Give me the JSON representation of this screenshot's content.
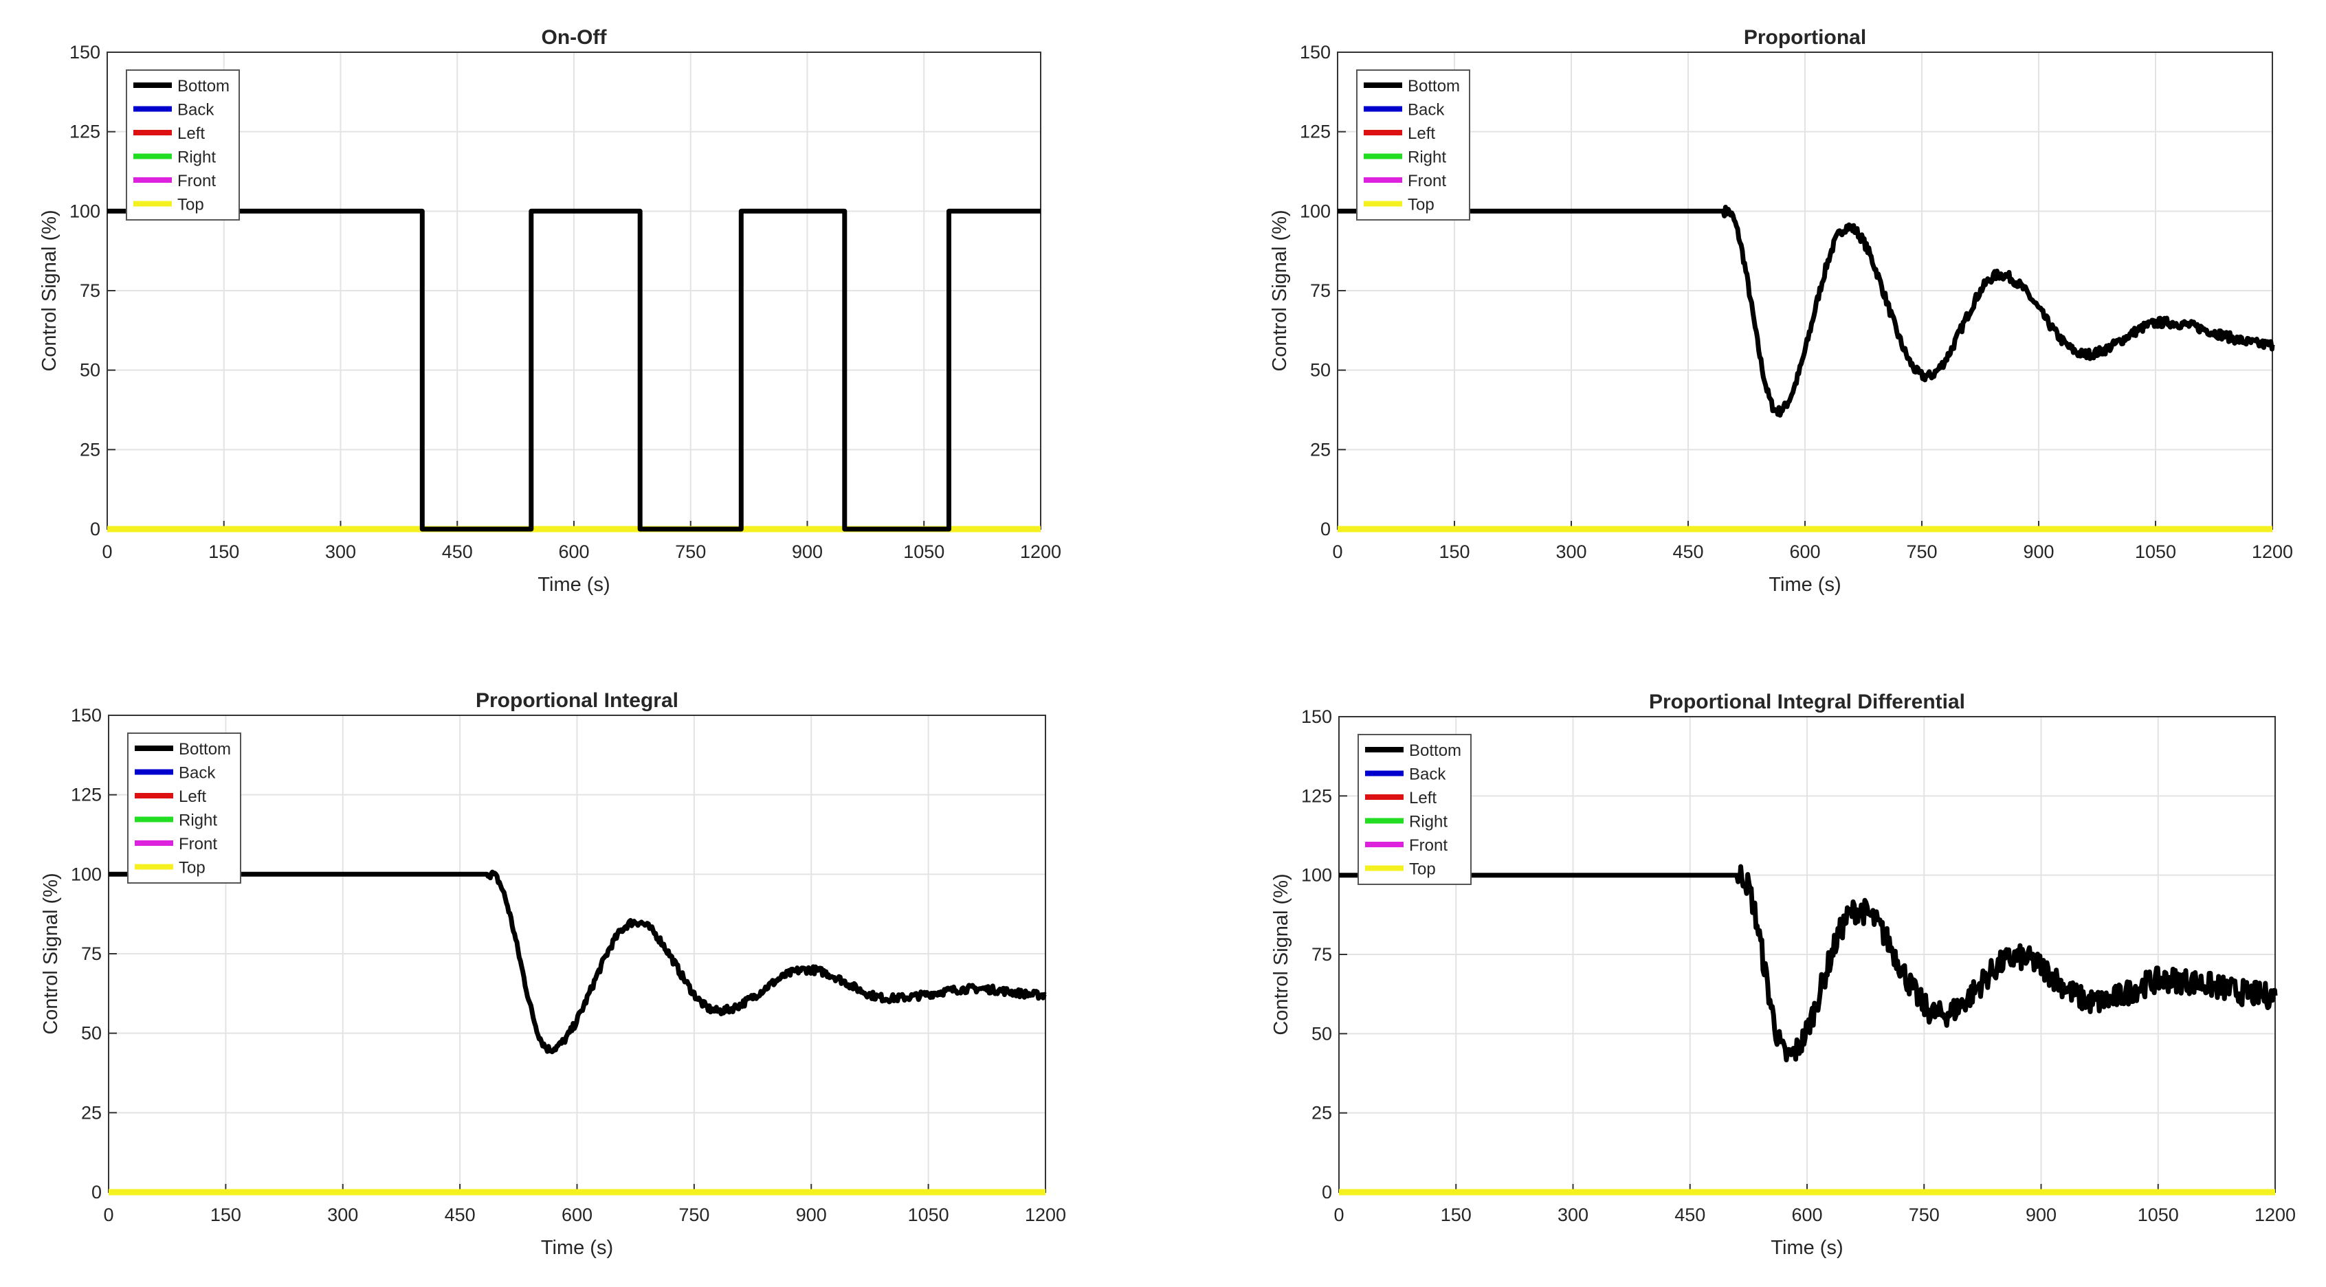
{
  "chart_data": [
    {
      "type": "line",
      "title": "On-Off",
      "xlabel": "Time (s)",
      "ylabel": "Control Signal (%)",
      "xlim": [
        0,
        1200
      ],
      "ylim": [
        0,
        150
      ],
      "xticks": [
        0,
        150,
        300,
        450,
        600,
        750,
        900,
        1050,
        1200
      ],
      "yticks": [
        0,
        25,
        50,
        75,
        100,
        125,
        150
      ],
      "grid": true,
      "legend_position": "top-left",
      "step": true,
      "noise": 0,
      "series": [
        {
          "name": "Bottom",
          "color": "#000000",
          "x": [
            0,
            405,
            405,
            545,
            545,
            685,
            685,
            815,
            815,
            948,
            948,
            1082,
            1082,
            1200
          ],
          "y": [
            100,
            100,
            0,
            0,
            100,
            100,
            0,
            0,
            100,
            100,
            0,
            0,
            100,
            100
          ]
        },
        {
          "name": "Back",
          "color": "#0000cc",
          "x": [
            0,
            1200
          ],
          "y": [
            0,
            0
          ]
        },
        {
          "name": "Left",
          "color": "#dd1111",
          "x": [
            0,
            1200
          ],
          "y": [
            0,
            0
          ]
        },
        {
          "name": "Right",
          "color": "#22dd22",
          "x": [
            0,
            1200
          ],
          "y": [
            0,
            0
          ]
        },
        {
          "name": "Front",
          "color": "#dd22dd",
          "x": [
            0,
            1200
          ],
          "y": [
            0,
            0
          ]
        },
        {
          "name": "Top",
          "color": "#f5f020",
          "x": [
            0,
            1200
          ],
          "y": [
            0,
            0
          ]
        }
      ]
    },
    {
      "type": "line",
      "title": "Proportional",
      "xlabel": "Time (s)",
      "ylabel": "Control Signal (%)",
      "xlim": [
        0,
        1200
      ],
      "ylim": [
        0,
        150
      ],
      "xticks": [
        0,
        150,
        300,
        450,
        600,
        750,
        900,
        1050,
        1200
      ],
      "yticks": [
        0,
        25,
        50,
        75,
        100,
        125,
        150
      ],
      "grid": true,
      "legend_position": "top-left",
      "step": false,
      "noise": 1.5,
      "series": [
        {
          "name": "Bottom",
          "color": "#000000",
          "x": [
            0,
            500,
            565,
            655,
            755,
            850,
            960,
            1060,
            1200
          ],
          "y": [
            100,
            100,
            37,
            95,
            48,
            80,
            55,
            65,
            58
          ]
        },
        {
          "name": "Back",
          "color": "#0000cc",
          "x": [
            0,
            1200
          ],
          "y": [
            0,
            0
          ]
        },
        {
          "name": "Left",
          "color": "#dd1111",
          "x": [
            0,
            1200
          ],
          "y": [
            0,
            0
          ]
        },
        {
          "name": "Right",
          "color": "#22dd22",
          "x": [
            0,
            1200
          ],
          "y": [
            0,
            0
          ]
        },
        {
          "name": "Front",
          "color": "#dd22dd",
          "x": [
            0,
            1200
          ],
          "y": [
            0,
            0
          ]
        },
        {
          "name": "Top",
          "color": "#f5f020",
          "x": [
            0,
            1200
          ],
          "y": [
            0,
            0
          ]
        }
      ]
    },
    {
      "type": "line",
      "title": "Proportional Integral",
      "xlabel": "Time (s)",
      "ylabel": "Control Signal (%)",
      "xlim": [
        0,
        1200
      ],
      "ylim": [
        0,
        150
      ],
      "xticks": [
        0,
        150,
        300,
        450,
        600,
        750,
        900,
        1050,
        1200
      ],
      "yticks": [
        0,
        25,
        50,
        75,
        100,
        125,
        150
      ],
      "grid": true,
      "legend_position": "top-left",
      "step": false,
      "noise": 1.2,
      "series": [
        {
          "name": "Bottom",
          "color": "#000000",
          "x": [
            0,
            490,
            565,
            675,
            780,
            895,
            1000,
            1110,
            1200
          ],
          "y": [
            100,
            100,
            45,
            85,
            57,
            70,
            61,
            64,
            62
          ]
        },
        {
          "name": "Back",
          "color": "#0000cc",
          "x": [
            0,
            1200
          ],
          "y": [
            0,
            0
          ]
        },
        {
          "name": "Left",
          "color": "#dd1111",
          "x": [
            0,
            1200
          ],
          "y": [
            0,
            0
          ]
        },
        {
          "name": "Right",
          "color": "#22dd22",
          "x": [
            0,
            1200
          ],
          "y": [
            0,
            0
          ]
        },
        {
          "name": "Front",
          "color": "#dd22dd",
          "x": [
            0,
            1200
          ],
          "y": [
            0,
            0
          ]
        },
        {
          "name": "Top",
          "color": "#f5f020",
          "x": [
            0,
            1200
          ],
          "y": [
            0,
            0
          ]
        }
      ]
    },
    {
      "type": "line",
      "title": "Proportional Integral Differential",
      "xlabel": "Time (s)",
      "ylabel": "Control Signal (%)",
      "xlim": [
        0,
        1200
      ],
      "ylim": [
        0,
        150
      ],
      "xticks": [
        0,
        150,
        300,
        450,
        600,
        750,
        900,
        1050,
        1200
      ],
      "yticks": [
        0,
        25,
        50,
        75,
        100,
        125,
        150
      ],
      "grid": true,
      "legend_position": "top-left",
      "step": false,
      "noise": 4,
      "series": [
        {
          "name": "Bottom",
          "color": "#000000",
          "x": [
            0,
            515,
            575,
            665,
            770,
            870,
            970,
            1060,
            1200
          ],
          "y": [
            100,
            100,
            43,
            89,
            56,
            74,
            60,
            67,
            62
          ]
        },
        {
          "name": "Back",
          "color": "#0000cc",
          "x": [
            0,
            1200
          ],
          "y": [
            0,
            0
          ]
        },
        {
          "name": "Left",
          "color": "#dd1111",
          "x": [
            0,
            1200
          ],
          "y": [
            0,
            0
          ]
        },
        {
          "name": "Right",
          "color": "#22dd22",
          "x": [
            0,
            1200
          ],
          "y": [
            0,
            0
          ]
        },
        {
          "name": "Front",
          "color": "#dd22dd",
          "x": [
            0,
            1200
          ],
          "y": [
            0,
            0
          ]
        },
        {
          "name": "Top",
          "color": "#f5f020",
          "x": [
            0,
            1200
          ],
          "y": [
            0,
            0
          ]
        }
      ]
    }
  ]
}
